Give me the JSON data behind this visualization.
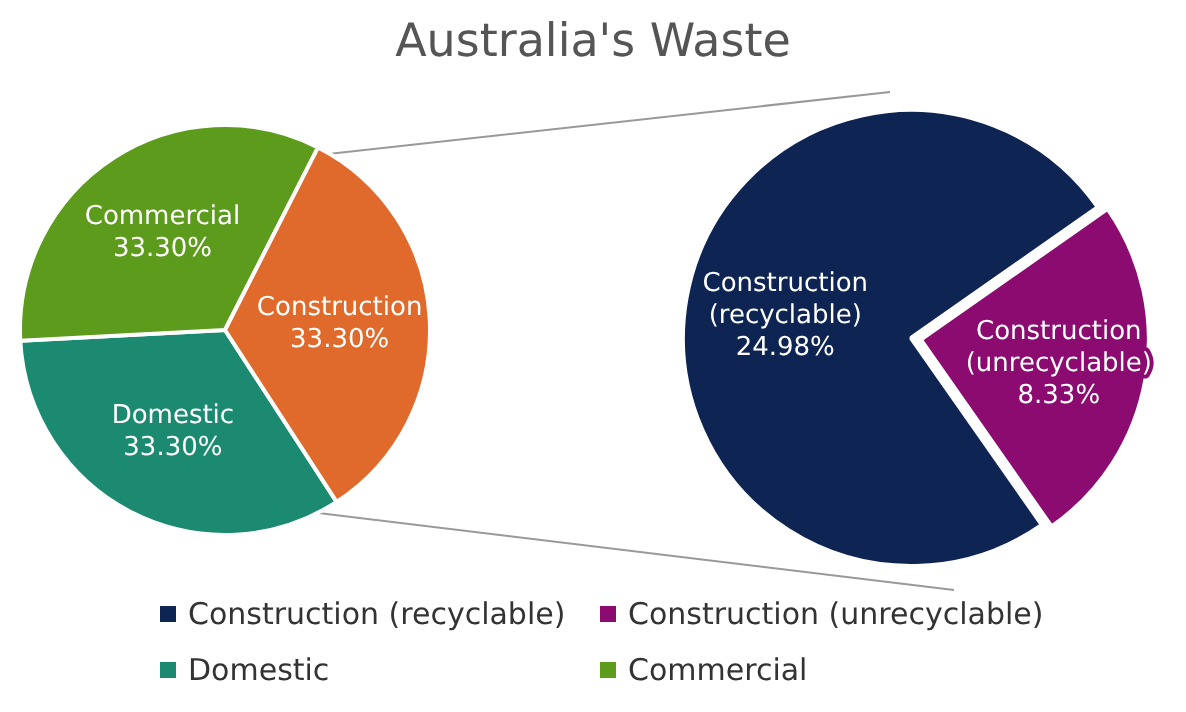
{
  "chart_data": [
    {
      "type": "pie",
      "title": "Australia's Waste",
      "categories": [
        "Domestic",
        "Commercial",
        "Construction"
      ],
      "values": [
        33.3,
        33.3,
        33.3
      ],
      "value_labels": [
        "33.30%",
        "33.30%",
        "33.30%"
      ],
      "colors": [
        "#1b8a70",
        "#5c9b1b",
        "#e06a2c"
      ],
      "legend": "bottom"
    },
    {
      "type": "pie",
      "categories": [
        "Construction (recyclable)",
        "Construction (unrecyclable)"
      ],
      "values": [
        24.98,
        8.33
      ],
      "value_labels": [
        "24.98%",
        "8.33%"
      ],
      "colors": [
        "#0e2452",
        "#8c0b70"
      ],
      "legend": "bottom"
    }
  ]
}
